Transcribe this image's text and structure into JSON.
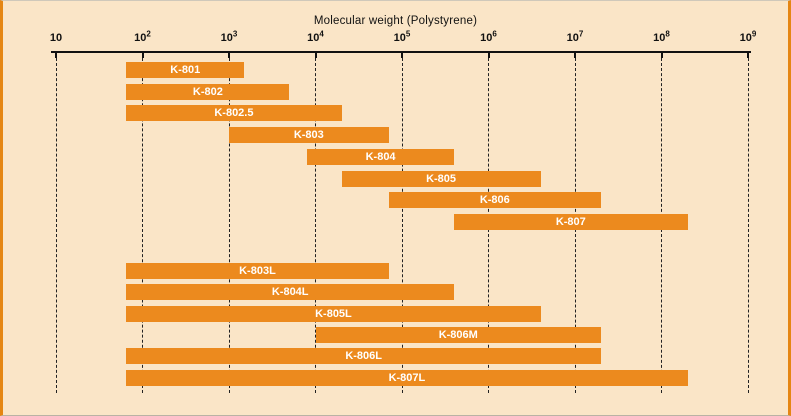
{
  "figure": {
    "background": "#FAE5C7",
    "bar_color": "#EC8A1E",
    "frame_color": "#E58613",
    "grid_color": "#222222",
    "text_color": "#111111",
    "bar_label_color": "#ffffff"
  },
  "chart_data": {
    "type": "bar",
    "orientation": "horizontal-range",
    "title": "Molecular weight (Polystyrene)",
    "x_axis": {
      "scale": "log",
      "min": 10,
      "max": 1000000000,
      "grid": true,
      "grid_style": "dashed-vertical",
      "ticks": [
        {
          "text": "10",
          "exp": "",
          "value": 10
        },
        {
          "text": "10",
          "exp": "2",
          "value": 100
        },
        {
          "text": "10",
          "exp": "3",
          "value": 1000
        },
        {
          "text": "10",
          "exp": "4",
          "value": 10000
        },
        {
          "text": "10",
          "exp": "5",
          "value": 100000
        },
        {
          "text": "10",
          "exp": "6",
          "value": 1000000
        },
        {
          "text": "10",
          "exp": "7",
          "value": 10000000
        },
        {
          "text": "10",
          "exp": "8",
          "value": 100000000
        },
        {
          "text": "10",
          "exp": "9",
          "value": 1000000000
        }
      ]
    },
    "groups": [
      {
        "name": "upper-group",
        "bars": [
          {
            "label": "K-801",
            "mw_min": 65,
            "mw_max": 1500
          },
          {
            "label": "K-802",
            "mw_min": 65,
            "mw_max": 5000
          },
          {
            "label": "K-802.5",
            "mw_min": 65,
            "mw_max": 20000
          },
          {
            "label": "K-803",
            "mw_min": 1000,
            "mw_max": 70000
          },
          {
            "label": "K-804",
            "mw_min": 8000,
            "mw_max": 400000
          },
          {
            "label": "K-805",
            "mw_min": 20000,
            "mw_max": 4000000
          },
          {
            "label": "K-806",
            "mw_min": 70000,
            "mw_max": 20000000
          },
          {
            "label": "K-807",
            "mw_min": 400000,
            "mw_max": 200000000
          }
        ]
      },
      {
        "name": "lower-group",
        "bars": [
          {
            "label": "K-803L",
            "mw_min": 65,
            "mw_max": 70000
          },
          {
            "label": "K-804L",
            "mw_min": 65,
            "mw_max": 400000
          },
          {
            "label": "K-805L",
            "mw_min": 65,
            "mw_max": 4000000
          },
          {
            "label": "K-806M",
            "mw_min": 10000,
            "mw_max": 20000000
          },
          {
            "label": "K-806L",
            "mw_min": 65,
            "mw_max": 20000000
          },
          {
            "label": "K-807L",
            "mw_min": 65,
            "mw_max": 200000000
          }
        ]
      }
    ]
  }
}
